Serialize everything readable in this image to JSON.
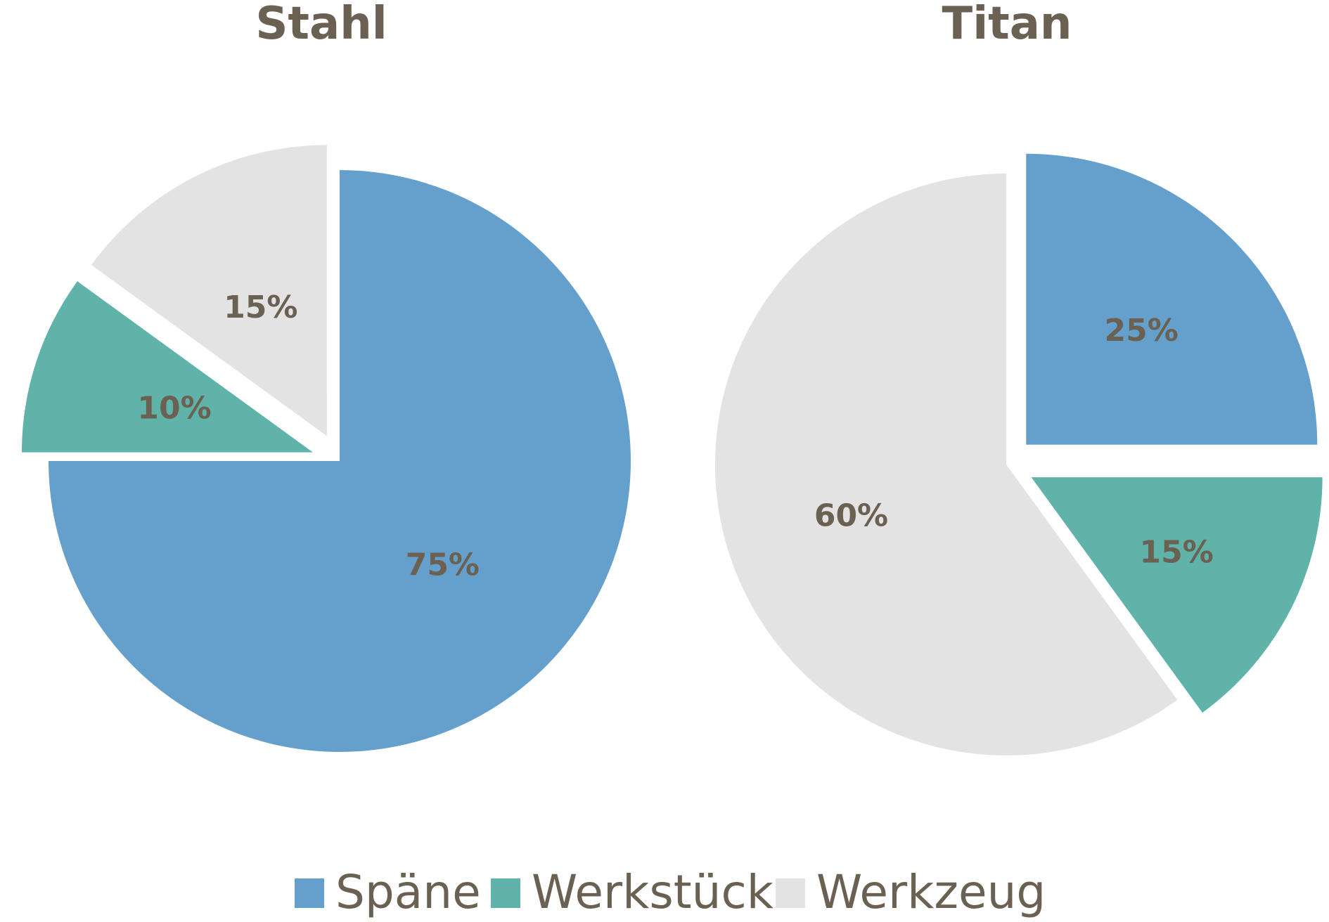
{
  "legend": [
    {
      "label": "Späne",
      "color": "#65a0cd"
    },
    {
      "label": "Werkstück",
      "color": "#5fb3a8"
    },
    {
      "label": "Werkzeug",
      "color": "#e3e3e3"
    }
  ],
  "chart_data": [
    {
      "type": "pie",
      "title": "Stahl",
      "legend_position": "bottom",
      "slices": [
        {
          "category": "Späne",
          "value": 75,
          "label": "75%"
        },
        {
          "category": "Werkstück",
          "value": 10,
          "label": "10%"
        },
        {
          "category": "Werkzeug",
          "value": 15,
          "label": "15%"
        }
      ]
    },
    {
      "type": "pie",
      "title": "Titan",
      "legend_position": "bottom",
      "slices": [
        {
          "category": "Späne",
          "value": 25,
          "label": "25%"
        },
        {
          "category": "Werkstück",
          "value": 15,
          "label": "15%"
        },
        {
          "category": "Werkzeug",
          "value": 60,
          "label": "60%"
        }
      ]
    }
  ]
}
